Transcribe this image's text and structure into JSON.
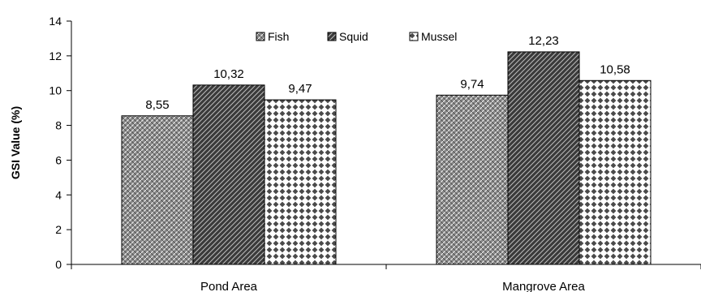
{
  "chart_data": {
    "type": "bar",
    "categories": [
      "Pond Area",
      "Mangrove Area"
    ],
    "series": [
      {
        "name": "Fish",
        "values": [
          8.55,
          9.74
        ],
        "labels": [
          "8,55",
          "9,74"
        ]
      },
      {
        "name": "Squid",
        "values": [
          10.32,
          12.23
        ],
        "labels": [
          "10,32",
          "12,23"
        ]
      },
      {
        "name": "Mussel",
        "values": [
          9.47,
          10.58
        ],
        "labels": [
          "9,47",
          "10,58"
        ]
      }
    ],
    "ylabel": "GSI Value (%)",
    "xlabel": "",
    "ylim": [
      0,
      14
    ],
    "yticks": [
      0,
      2,
      4,
      6,
      8,
      10,
      12,
      14
    ],
    "legend_position": "top-center",
    "grid": false,
    "colors": {
      "fish": "#7a7a7a",
      "squid": "#3a3a3a",
      "mussel": "#ffffff",
      "axis": "#000000"
    }
  }
}
